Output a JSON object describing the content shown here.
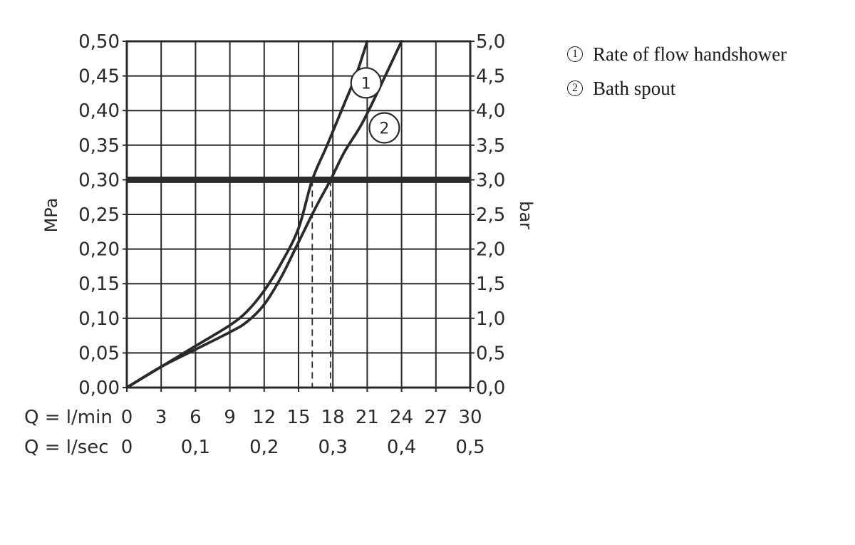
{
  "chart_data": {
    "type": "line",
    "ylabel_left": "MPa",
    "ylabel_right": "bar",
    "x_row1_label": "Q = l/min",
    "x_row2_label": "Q = l/sec",
    "x_ticks_lmin": [
      "0",
      "3",
      "6",
      "9",
      "12",
      "15",
      "18",
      "21",
      "24",
      "27",
      "30"
    ],
    "x_ticks_lsec": [
      "0",
      "0,1",
      "0,2",
      "0,3",
      "0,4",
      "0,5"
    ],
    "y_ticks_mpa": [
      "0,00",
      "0,05",
      "0,10",
      "0,15",
      "0,20",
      "0,25",
      "0,30",
      "0,35",
      "0,40",
      "0,45",
      "0,50"
    ],
    "y_ticks_bar": [
      "0,0",
      "0,5",
      "1,0",
      "1,5",
      "2,0",
      "2,5",
      "3,0",
      "3,5",
      "4,0",
      "4,5",
      "5,0"
    ],
    "xlim": [
      0,
      30
    ],
    "ylim": [
      0,
      0.5
    ],
    "grid": true,
    "reference_line": {
      "y": 0.3
    },
    "series": [
      {
        "name": "1",
        "label": "1",
        "x": [
          0,
          3,
          6,
          9,
          10.5,
          12,
          13.5,
          15,
          16.2,
          17.5,
          19,
          20,
          21
        ],
        "y": [
          0,
          0.03,
          0.06,
          0.09,
          0.11,
          0.14,
          0.18,
          0.23,
          0.3,
          0.35,
          0.41,
          0.45,
          0.5
        ]
      },
      {
        "name": "2",
        "label": "2",
        "x": [
          0,
          3,
          6,
          9,
          10.5,
          12,
          13.5,
          15,
          16.5,
          17.8,
          19,
          20.5,
          22,
          24
        ],
        "y": [
          0,
          0.03,
          0.055,
          0.08,
          0.095,
          0.12,
          0.16,
          0.21,
          0.26,
          0.3,
          0.34,
          0.38,
          0.43,
          0.5
        ]
      }
    ],
    "drop_lines_x": [
      16.2,
      17.8
    ]
  },
  "legend": {
    "items": [
      {
        "badge": "1",
        "text": "Rate of flow handshower"
      },
      {
        "badge": "2",
        "text": "Bath spout"
      }
    ]
  }
}
